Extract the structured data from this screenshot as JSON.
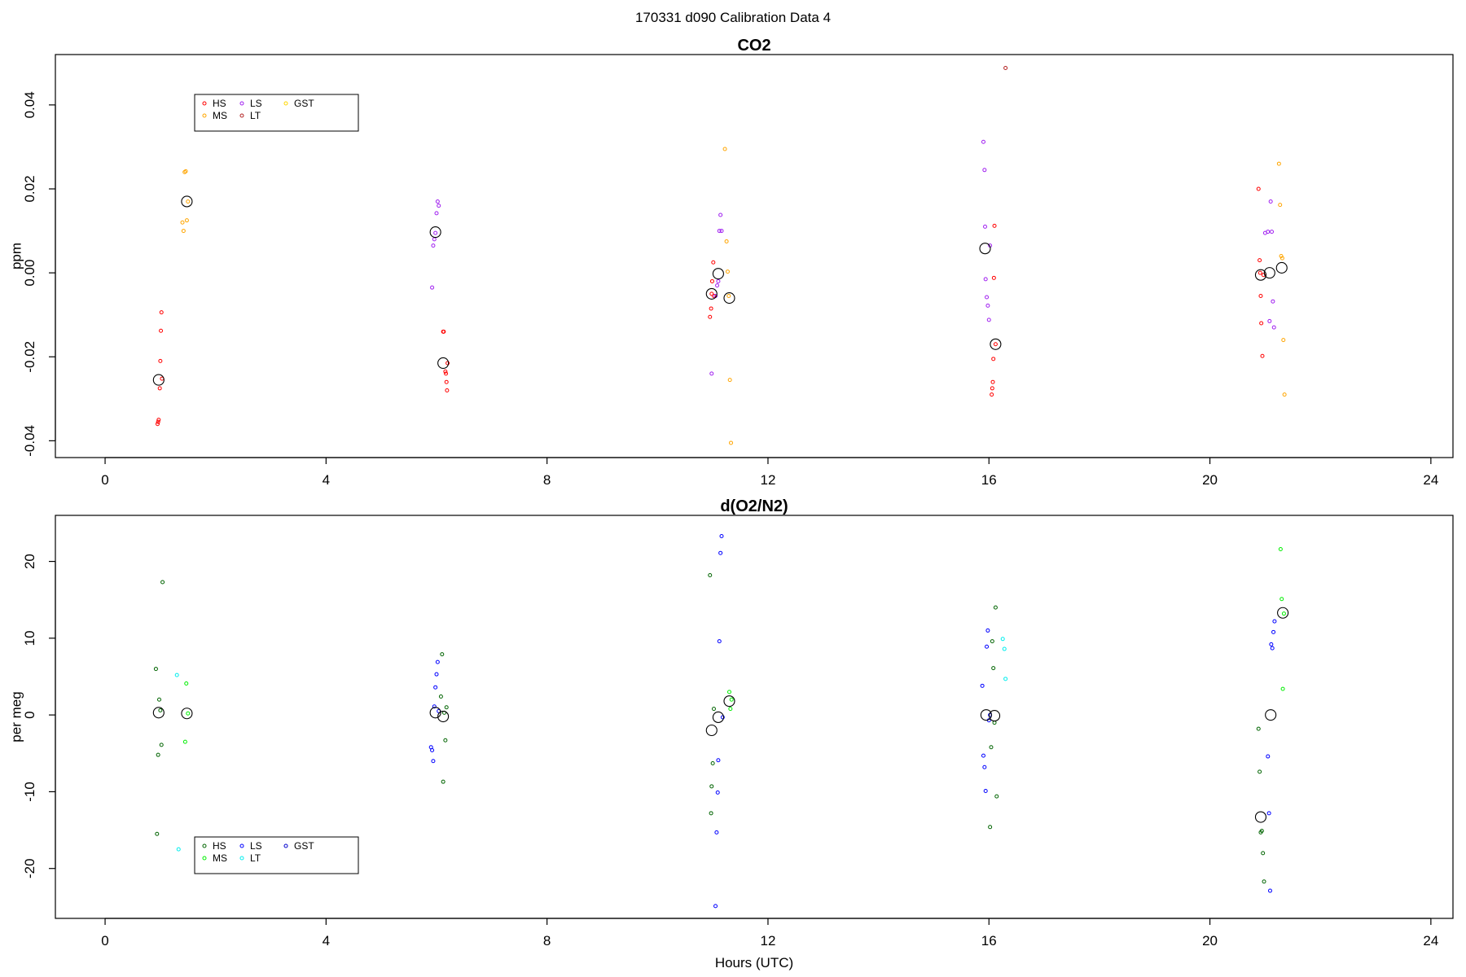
{
  "suptitle": "170331   d090   Calibration Data 4",
  "colors": {
    "HS_co2": "#ff0000",
    "MS_co2": "#ffa500",
    "LS_co2": "#a020f0",
    "LT_co2": "#b22222",
    "GST_co2": "#ffd700",
    "HS_o2": "#006400",
    "MS_o2": "#00ee00",
    "LS_o2": "#0000ff",
    "LT_o2": "#00eeee",
    "GST_o2": "#0000cd",
    "mean": "#000000"
  },
  "chart_data": [
    {
      "type": "scatter",
      "title": "CO2",
      "xlabel": "",
      "ylabel": "ppm",
      "xlim": [
        -0.9,
        24.4
      ],
      "ylim": [
        -0.044,
        0.052
      ],
      "xticks": [
        0,
        4,
        8,
        12,
        16,
        20,
        24
      ],
      "yticks": [
        -0.04,
        -0.02,
        0.0,
        0.02,
        0.04
      ],
      "ytick_labels": [
        "-0.04",
        "-0.02",
        "0.00",
        "0.02",
        "0.04"
      ],
      "legend": {
        "placement": "top-left",
        "entries": [
          "HS",
          "MS",
          "LS",
          "LT",
          "GST"
        ]
      },
      "series": [
        {
          "name": "HS",
          "color_key": "HS_co2",
          "x": [
            0.95,
            0.96,
            0.97,
            0.99,
            1.0,
            1.01,
            1.02,
            1.03,
            6.12,
            6.13,
            6.16,
            6.17,
            6.18,
            6.19,
            6.2,
            10.95,
            10.97,
            10.98,
            10.99,
            11.01,
            11.02,
            16.05,
            16.06,
            16.07,
            16.08,
            16.09,
            16.1,
            16.12,
            20.88,
            20.9,
            20.91,
            20.92,
            20.93,
            20.95,
            20.97
          ],
          "y": [
            -0.036,
            -0.0355,
            -0.035,
            -0.0275,
            -0.021,
            -0.0138,
            -0.0094,
            -0.0252,
            -0.014,
            -0.014,
            -0.0235,
            -0.024,
            -0.026,
            -0.028,
            -0.0215,
            -0.0105,
            -0.0085,
            -0.005,
            -0.002,
            0.0025,
            -0.0055,
            -0.029,
            -0.0275,
            -0.026,
            -0.0205,
            -0.0012,
            0.0112,
            -0.017,
            0.02,
            0.003,
            0.0,
            -0.0055,
            -0.012,
            -0.0198,
            -0.0005
          ]
        },
        {
          "name": "MS",
          "color_key": "MS_co2",
          "x": [
            1.4,
            1.42,
            1.44,
            1.46,
            1.48,
            1.5,
            11.22,
            11.25,
            11.27,
            11.29,
            11.31,
            11.33,
            21.25,
            21.27,
            21.29,
            21.31,
            21.33,
            21.35
          ],
          "y": [
            0.012,
            0.01,
            0.024,
            0.0242,
            0.0125,
            0.017,
            0.0295,
            0.0075,
            0.0003,
            -0.0055,
            -0.0255,
            -0.0405,
            0.026,
            0.0162,
            0.004,
            0.0035,
            -0.016,
            -0.029
          ]
        },
        {
          "name": "LS",
          "color_key": "LS_co2",
          "x": [
            5.92,
            5.94,
            5.96,
            5.98,
            6.0,
            6.02,
            6.04,
            10.98,
            11.05,
            11.08,
            11.1,
            11.12,
            11.14,
            11.16,
            15.9,
            15.92,
            15.93,
            15.94,
            15.96,
            15.98,
            16.0,
            16.02,
            21.0,
            21.05,
            21.08,
            21.1,
            21.12,
            21.14,
            21.16
          ],
          "y": [
            -0.0035,
            0.0065,
            0.008,
            0.0095,
            0.0142,
            0.017,
            0.016,
            -0.024,
            -0.0055,
            -0.003,
            -0.002,
            0.01,
            0.0138,
            0.01,
            0.0312,
            0.0245,
            0.011,
            -0.0015,
            -0.0058,
            -0.0078,
            -0.0112,
            0.0065,
            0.0095,
            0.0098,
            -0.0115,
            0.017,
            0.0098,
            -0.0068,
            -0.013
          ]
        },
        {
          "name": "LT",
          "color_key": "LT_co2",
          "x": [
            16.3
          ],
          "y": [
            0.0488
          ]
        },
        {
          "name": "GST",
          "color_key": "GST_co2",
          "x": [],
          "y": []
        },
        {
          "name": "",
          "color_key": "mean",
          "marker": "large",
          "x": [
            0.97,
            1.48,
            5.98,
            6.12,
            10.98,
            11.1,
            11.3,
            15.93,
            16.12,
            20.92,
            21.08,
            21.3
          ],
          "y": [
            -0.0255,
            0.017,
            0.0097,
            -0.0215,
            -0.005,
            -0.0002,
            -0.006,
            0.0058,
            -0.017,
            -0.0005,
            0.0,
            0.0012
          ]
        }
      ]
    },
    {
      "type": "scatter",
      "title": "d(O2/N2)",
      "xlabel": "Hours (UTC)",
      "ylabel": "per meg",
      "xlim": [
        -0.9,
        24.4
      ],
      "ylim": [
        -26.5,
        26.0
      ],
      "xticks": [
        0,
        4,
        8,
        12,
        16,
        20,
        24
      ],
      "yticks": [
        -20,
        -10,
        0,
        10,
        20
      ],
      "ytick_labels": [
        "-20",
        "-10",
        "0",
        "10",
        "20"
      ],
      "legend": {
        "placement": "bottom-left",
        "entries": [
          "HS",
          "MS",
          "LS",
          "LT",
          "GST"
        ]
      },
      "series": [
        {
          "name": "HS",
          "color_key": "HS_o2",
          "x": [
            0.92,
            0.94,
            0.96,
            0.98,
            1.0,
            1.02,
            1.04,
            6.08,
            6.1,
            6.12,
            6.14,
            6.16,
            6.18,
            10.95,
            10.97,
            10.98,
            11.0,
            11.02,
            16.02,
            16.04,
            16.06,
            16.08,
            16.1,
            16.12,
            16.14,
            20.88,
            20.9,
            20.92,
            20.94,
            20.96,
            20.98
          ],
          "y": [
            6.0,
            -15.5,
            -5.2,
            2.0,
            0.6,
            -3.9,
            17.3,
            2.4,
            7.9,
            -8.7,
            0.3,
            -3.3,
            1.0,
            18.2,
            -12.8,
            -9.3,
            -6.3,
            0.8,
            -14.6,
            -4.2,
            9.6,
            6.1,
            -1.0,
            14.0,
            -10.6,
            -1.8,
            -7.4,
            -15.3,
            -15.1,
            -18.0,
            -21.7
          ]
        },
        {
          "name": "MS",
          "color_key": "MS_o2",
          "x": [
            1.45,
            1.47,
            1.5,
            11.3,
            11.32,
            11.34,
            21.28,
            21.3,
            21.32,
            21.34
          ],
          "y": [
            -3.5,
            4.1,
            0.2,
            3.0,
            0.8,
            2.0,
            21.6,
            15.1,
            3.4,
            13.2
          ]
        },
        {
          "name": "LS",
          "color_key": "LS_o2",
          "x": [
            5.9,
            5.92,
            5.94,
            5.96,
            5.98,
            6.0,
            6.02,
            6.04,
            11.05,
            11.07,
            11.09,
            11.1,
            11.12,
            11.14,
            11.16,
            11.18,
            15.88,
            15.9,
            15.92,
            15.94,
            15.96,
            15.98,
            16.0,
            16.02,
            21.05,
            21.07,
            21.09,
            21.11,
            21.13,
            21.15,
            21.17
          ],
          "y": [
            -4.2,
            -4.6,
            -6.0,
            1.1,
            3.6,
            5.3,
            6.9,
            0.5,
            -24.9,
            -15.3,
            -10.1,
            -5.9,
            9.6,
            21.1,
            23.3,
            -0.3,
            3.8,
            -5.3,
            -6.8,
            -9.9,
            8.9,
            11.0,
            -0.7,
            0.0,
            -5.4,
            -12.8,
            -22.9,
            9.2,
            8.7,
            10.8,
            12.2
          ]
        },
        {
          "name": "LT",
          "color_key": "LT_o2",
          "x": [
            1.3,
            1.33,
            16.25,
            16.28,
            16.3
          ],
          "y": [
            5.2,
            -17.5,
            9.9,
            8.6,
            4.7
          ]
        },
        {
          "name": "GST",
          "color_key": "GST_o2",
          "x": [],
          "y": []
        },
        {
          "name": "",
          "color_key": "mean",
          "marker": "large",
          "x": [
            0.97,
            1.48,
            5.98,
            6.12,
            10.98,
            11.1,
            11.3,
            15.95,
            16.1,
            20.92,
            21.1,
            21.32
          ],
          "y": [
            0.3,
            0.2,
            0.3,
            -0.2,
            -2.0,
            -0.3,
            1.8,
            0.0,
            -0.1,
            -13.3,
            0.0,
            13.3
          ]
        }
      ]
    }
  ]
}
